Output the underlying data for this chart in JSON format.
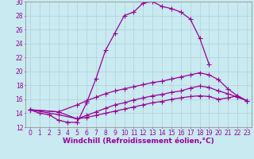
{
  "xlabel": "Windchill (Refroidissement éolien,°C)",
  "xlim": [
    -0.5,
    23.5
  ],
  "ylim": [
    12,
    30
  ],
  "xticks": [
    0,
    1,
    2,
    3,
    4,
    5,
    6,
    7,
    8,
    9,
    10,
    11,
    12,
    13,
    14,
    15,
    16,
    17,
    18,
    19,
    20,
    21,
    22,
    23
  ],
  "yticks": [
    12,
    14,
    16,
    18,
    20,
    22,
    24,
    26,
    28,
    30
  ],
  "background_color": "#c8eaf0",
  "line_color": "#990099",
  "grid_color": "#b0c8d0",
  "line1_x": [
    0,
    1,
    2,
    3,
    4,
    5,
    6,
    7,
    8,
    9,
    10,
    11,
    12,
    13,
    14,
    15,
    16,
    17,
    18,
    19
  ],
  "line1_y": [
    14.5,
    14.0,
    13.8,
    13.0,
    12.7,
    12.7,
    15.5,
    19.0,
    23.0,
    25.5,
    28.0,
    28.5,
    29.8,
    30.0,
    29.3,
    29.0,
    28.5,
    27.5,
    24.8,
    21.0
  ],
  "line2_x": [
    0,
    3,
    5,
    6,
    7,
    8,
    9,
    10,
    11,
    12,
    13,
    14,
    15,
    16,
    17,
    18,
    19,
    20,
    21,
    22,
    23
  ],
  "line2_y": [
    14.5,
    14.2,
    15.2,
    15.8,
    16.3,
    16.8,
    17.2,
    17.5,
    17.8,
    18.1,
    18.4,
    18.6,
    18.9,
    19.2,
    19.5,
    19.8,
    19.5,
    18.8,
    17.5,
    16.5,
    15.8
  ],
  "line3_x": [
    0,
    3,
    5,
    6,
    7,
    8,
    9,
    10,
    11,
    12,
    13,
    14,
    15,
    16,
    17,
    18,
    19,
    20,
    21,
    22,
    23
  ],
  "line3_y": [
    14.5,
    13.8,
    13.2,
    13.7,
    14.2,
    14.7,
    15.2,
    15.5,
    15.9,
    16.2,
    16.5,
    16.7,
    17.0,
    17.2,
    17.6,
    17.9,
    17.7,
    17.2,
    16.8,
    16.3,
    15.8
  ],
  "line4_x": [
    0,
    3,
    5,
    6,
    7,
    8,
    9,
    10,
    11,
    12,
    13,
    14,
    15,
    16,
    17,
    18,
    19,
    20,
    21,
    22,
    23
  ],
  "line4_y": [
    14.5,
    14.2,
    13.2,
    13.4,
    13.7,
    14.0,
    14.3,
    14.6,
    14.9,
    15.2,
    15.5,
    15.7,
    16.0,
    16.2,
    16.4,
    16.5,
    16.4,
    16.0,
    16.2,
    16.5,
    15.8
  ],
  "font_size_xlabel": 6.5,
  "font_size_ticks": 5.5,
  "linewidth": 0.9,
  "markersize": 2.0
}
